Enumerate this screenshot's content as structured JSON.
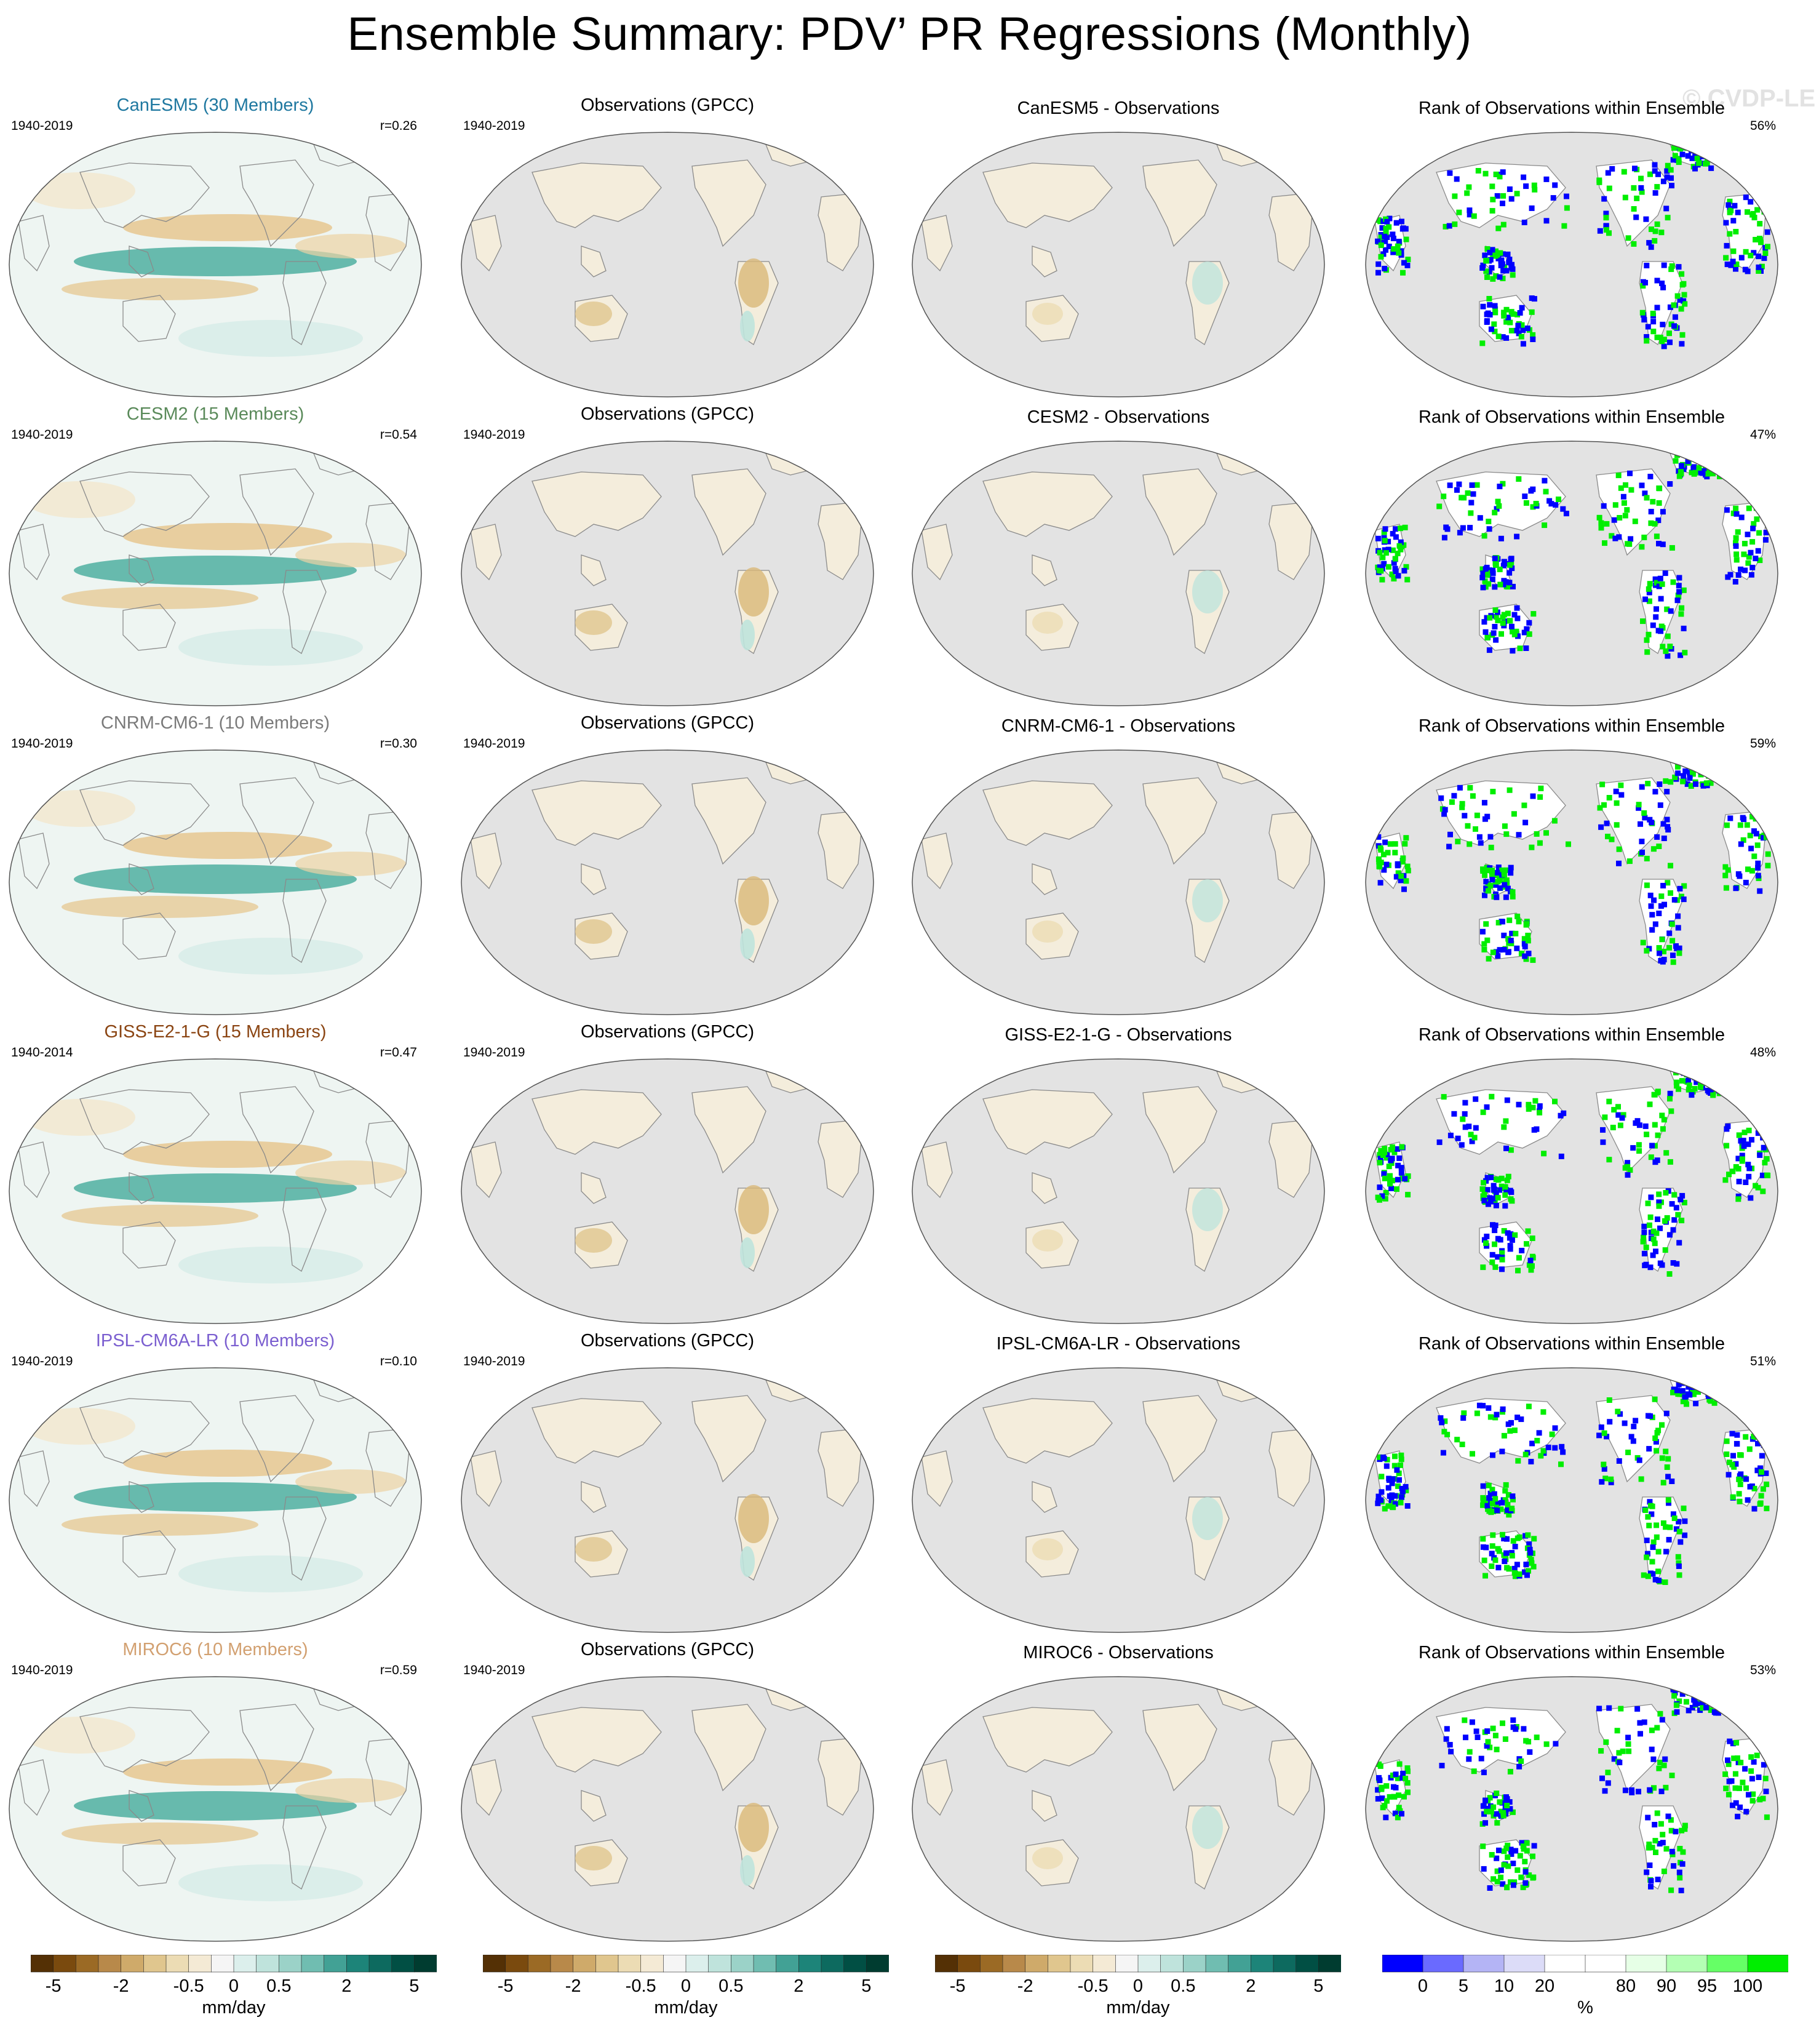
{
  "title": "Ensemble Summary: PDV’ PR Regressions (Monthly)",
  "watermark": "© CVDP-LE",
  "colors": {
    "ocean_gray": "#e3e3e3",
    "rank_low": "#0000ff",
    "rank_high": "#00ee00",
    "model_title_colors": [
      "#1f78a0",
      "#5a8a5a",
      "#7a7a7a",
      "#8b4513",
      "#7b5fd0",
      "#d2a070"
    ]
  },
  "chart_data": {
    "type": "map-panel-grid",
    "projection": "Robinson (Pacific-centered)",
    "columns": [
      "model ensemble mean",
      "observations",
      "model minus observations",
      "rank of observations"
    ],
    "rows": [
      {
        "model_title": "CanESM5 (30 Members)",
        "model_years": "1940-2019",
        "pattern_corr": "r=0.26",
        "obs_title": "Observations (GPCC)",
        "obs_years": "1940-2019",
        "diff_title": "CanESM5 - Observations",
        "rank_title": "Rank of Observations within Ensemble",
        "rank_pct": "56%"
      },
      {
        "model_title": "CESM2 (15 Members)",
        "model_years": "1940-2019",
        "pattern_corr": "r=0.54",
        "obs_title": "Observations (GPCC)",
        "obs_years": "1940-2019",
        "diff_title": "CESM2 - Observations",
        "rank_title": "Rank of Observations within Ensemble",
        "rank_pct": "47%"
      },
      {
        "model_title": "CNRM-CM6-1 (10 Members)",
        "model_years": "1940-2019",
        "pattern_corr": "r=0.30",
        "obs_title": "Observations (GPCC)",
        "obs_years": "1940-2019",
        "diff_title": "CNRM-CM6-1 - Observations",
        "rank_title": "Rank of Observations within Ensemble",
        "rank_pct": "59%"
      },
      {
        "model_title": "GISS-E2-1-G (15 Members)",
        "model_years": "1940-2014",
        "pattern_corr": "r=0.47",
        "obs_title": "Observations (GPCC)",
        "obs_years": "1940-2019",
        "diff_title": "GISS-E2-1-G - Observations",
        "rank_title": "Rank of Observations within Ensemble",
        "rank_pct": "48%"
      },
      {
        "model_title": "IPSL-CM6A-LR (10 Members)",
        "model_years": "1940-2019",
        "pattern_corr": "r=0.10",
        "obs_title": "Observations (GPCC)",
        "obs_years": "1940-2019",
        "diff_title": "IPSL-CM6A-LR - Observations",
        "rank_title": "Rank of Observations within Ensemble",
        "rank_pct": "51%"
      },
      {
        "model_title": "MIROC6 (10 Members)",
        "model_years": "1940-2019",
        "pattern_corr": "r=0.59",
        "obs_title": "Observations (GPCC)",
        "obs_years": "1940-2019",
        "diff_title": "MIROC6 - Observations",
        "rank_title": "Rank of Observations within Ensemble",
        "rank_pct": "53%"
      }
    ],
    "colorbars": {
      "pr": {
        "unit": "mm/day",
        "tick_labels": [
          "-5",
          "-2",
          "-0.5",
          "0",
          "0.5",
          "2",
          "5"
        ],
        "colors": [
          "#543005",
          "#7a4a0e",
          "#9b6a25",
          "#b8894a",
          "#cfaa6a",
          "#e0c68e",
          "#ecdcb4",
          "#f4ead5",
          "#f5f5f5",
          "#dcefec",
          "#bfe3dc",
          "#9bd2c8",
          "#70bdb1",
          "#42a195",
          "#1d8479",
          "#0d6a5f",
          "#014f44",
          "#003c30"
        ],
        "tick_boundaries": [
          1,
          4,
          7,
          9,
          11,
          14,
          17
        ]
      },
      "rank": {
        "unit": "%",
        "tick_labels": [
          "0",
          "5",
          "10",
          "20",
          "80",
          "90",
          "95",
          "100"
        ],
        "colors": [
          "#0000ff",
          "#6a6aff",
          "#b4b4f5",
          "#dcdcf8",
          "#ffffff",
          "#ffffff",
          "#e6ffe6",
          "#b4ffb4",
          "#66ff66",
          "#00ee00"
        ],
        "tick_boundaries": [
          1,
          2,
          3,
          4,
          6,
          7,
          8,
          9
        ]
      }
    }
  }
}
